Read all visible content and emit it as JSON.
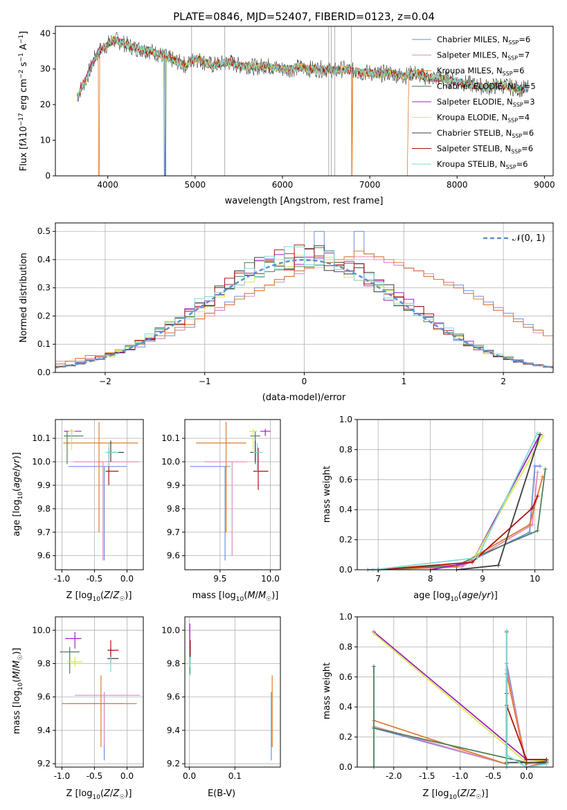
{
  "title": "PLATE=0846, MJD=52407, FIBERID=0123, z=0.04",
  "colors": {
    "Chabrier MILES": "#6b8fe0",
    "Salpeter MILES": "#e68ab8",
    "Kroupa MILES": "#e07b2a",
    "Chabrier ELODIE": "#4f7f5a",
    "Salpeter ELODIE": "#a020c0",
    "Kroupa ELODIE": "#d8e84a",
    "Chabrier STELIB": "#3c3c3c",
    "Salpeter STELIB": "#b01010",
    "Kroupa STELIB": "#7fd8d8",
    "normal": "#5b8ed6"
  },
  "chart_data": [
    {
      "id": "spectrum",
      "type": "line",
      "xlabel": "wavelength [Angstrom, rest frame]",
      "ylabel": "Flux [fλ10⁻¹⁷ erg cm⁻² s⁻¹ A⁻¹]",
      "xlim": [
        3400,
        9100
      ],
      "ylim": [
        0,
        42
      ],
      "xticks": [
        4000,
        5000,
        6000,
        7000,
        8000,
        9000
      ],
      "yticks": [
        0,
        10,
        20,
        30,
        40
      ],
      "legend_position": "top-right",
      "legend": [
        {
          "name": "Chabrier MILES",
          "nssp": "6"
        },
        {
          "name": "Salpeter MILES",
          "nssp": "7"
        },
        {
          "name": "Kroupa MILES",
          "nssp": "6"
        },
        {
          "name": "Chabrier ELODIE",
          "nssp": "5"
        },
        {
          "name": "Salpeter ELODIE",
          "nssp": "3"
        },
        {
          "name": "Kroupa ELODIE",
          "nssp": "4"
        },
        {
          "name": "Chabrier STELIB",
          "nssp": "6"
        },
        {
          "name": "Salpeter STELIB",
          "nssp": "6"
        },
        {
          "name": "Kroupa STELIB",
          "nssp": "6"
        }
      ],
      "series": [
        {
          "name": "data",
          "x": [
            3650,
            3700,
            3750,
            3800,
            3850,
            3900,
            3950,
            4000,
            4050,
            4100,
            4200,
            4300,
            4400,
            4500,
            4600,
            4700,
            4800,
            4900,
            5000,
            5100,
            5200,
            5300,
            5400,
            5500,
            5600,
            5700,
            5800,
            5900,
            6000,
            6100,
            6200,
            6300,
            6400,
            6500,
            6600,
            6700,
            6800,
            6900,
            7000,
            7100,
            7200,
            7300,
            7400,
            7500,
            7600,
            7700,
            7800,
            7900,
            8000,
            8100,
            8200,
            8300,
            8400,
            8500,
            8600,
            8700,
            8800
          ],
          "y": [
            22,
            25,
            27,
            30,
            33,
            35,
            36,
            37,
            38,
            38,
            37,
            36,
            35.5,
            35,
            34,
            33,
            32,
            31,
            33,
            32,
            31,
            31.5,
            32,
            31,
            31,
            30.5,
            31,
            30.5,
            30,
            30,
            30.5,
            30,
            30,
            30,
            29.5,
            30,
            29.5,
            29,
            29,
            28.5,
            29,
            28.5,
            28,
            29,
            28,
            27.5,
            27.5,
            27,
            26.5,
            26,
            25.5,
            25,
            25,
            25.5,
            25,
            24.5,
            24.5
          ]
        }
      ]
    },
    {
      "id": "residuals",
      "type": "histogram",
      "xlabel": "(data-model)/error",
      "ylabel": "Normed distribution",
      "xlim": [
        -2.5,
        2.5
      ],
      "ylim": [
        0,
        0.53
      ],
      "xticks": [
        -2,
        -1,
        0,
        1,
        2
      ],
      "yticks": [
        0.0,
        0.1,
        0.2,
        0.3,
        0.4,
        0.5
      ],
      "legend_position": "top-right",
      "normal_label": "𝒩(0, 1)",
      "bin_width": 0.1,
      "bin_start": -2.5,
      "histograms": [
        {
          "name": "Chabrier MILES",
          "values": [
            0.03,
            0.04,
            0.04,
            0.05,
            0.06,
            0.06,
            0.07,
            0.08,
            0.09,
            0.11,
            0.12,
            0.13,
            0.15,
            0.16,
            0.19,
            0.21,
            0.22,
            0.25,
            0.27,
            0.28,
            0.3,
            0.31,
            0.33,
            0.34,
            0.36,
            0.37,
            0.38,
            0.39,
            0.4,
            0.41,
            0.5,
            0.42,
            0.41,
            0.39,
            0.38,
            0.37,
            0.36,
            0.34,
            0.33,
            0.32,
            0.31,
            0.29,
            0.27,
            0.25,
            0.23,
            0.21,
            0.19,
            0.17,
            0.15,
            0.13
          ]
        },
        {
          "name": "Salpeter MILES",
          "values": [
            0.04,
            0.04,
            0.05,
            0.05,
            0.06,
            0.07,
            0.08,
            0.09,
            0.1,
            0.11,
            0.12,
            0.14,
            0.15,
            0.17,
            0.19,
            0.2,
            0.22,
            0.24,
            0.26,
            0.27,
            0.29,
            0.31,
            0.32,
            0.34,
            0.35,
            0.37,
            0.38,
            0.39,
            0.4,
            0.4,
            0.41,
            0.41,
            0.4,
            0.39,
            0.38,
            0.37,
            0.36,
            0.35,
            0.33,
            0.32,
            0.3,
            0.28,
            0.26,
            0.24,
            0.22,
            0.2,
            0.18,
            0.16,
            0.14,
            0.13
          ]
        },
        {
          "name": "Kroupa MILES",
          "values": [
            0.03,
            0.04,
            0.05,
            0.06,
            0.06,
            0.07,
            0.08,
            0.09,
            0.1,
            0.12,
            0.13,
            0.14,
            0.16,
            0.17,
            0.19,
            0.21,
            0.23,
            0.24,
            0.26,
            0.28,
            0.29,
            0.31,
            0.33,
            0.34,
            0.36,
            0.37,
            0.38,
            0.39,
            0.4,
            0.41,
            0.43,
            0.42,
            0.41,
            0.4,
            0.39,
            0.37,
            0.36,
            0.34,
            0.33,
            0.31,
            0.3,
            0.28,
            0.26,
            0.24,
            0.22,
            0.2,
            0.18,
            0.16,
            0.15,
            0.13
          ]
        }
      ]
    },
    {
      "id": "z_age",
      "type": "scatter",
      "xlabel": "Z [log₁₀(Z/Z☉)]",
      "ylabel": "age  [log₁₀(age/yr)]",
      "xlim": [
        -1.1,
        0.25
      ],
      "ylim": [
        9.54,
        10.18
      ],
      "xticks": [
        -1.0,
        -0.5,
        0.0
      ],
      "yticks": [
        9.6,
        9.7,
        9.8,
        9.9,
        10.0,
        10.1
      ]
    },
    {
      "id": "mass_age",
      "type": "scatter",
      "xlabel": "mass [log₁₀(M/M☉)]",
      "xlim": [
        9.15,
        10.1
      ],
      "ylim": [
        9.54,
        10.18
      ],
      "xticks": [
        9.5,
        10.0
      ],
      "yticks": [
        9.6,
        9.7,
        9.8,
        9.9,
        10.0,
        10.1
      ]
    },
    {
      "id": "age_weight",
      "type": "line",
      "xlabel": "age  [log₁₀(age/yr)]",
      "ylabel": "mass weight",
      "xlim": [
        6.6,
        10.35
      ],
      "ylim": [
        0,
        1.0
      ],
      "xticks": [
        7,
        8,
        9,
        10
      ],
      "yticks": [
        0.0,
        0.2,
        0.4,
        0.6,
        0.8,
        1.0
      ]
    },
    {
      "id": "z_mass",
      "type": "scatter",
      "xlabel": "Z [log₁₀(Z/Z☉)]",
      "ylabel": "mass [log₁₀(M/M☉)]",
      "xlim": [
        -1.1,
        0.25
      ],
      "ylim": [
        9.18,
        10.08
      ],
      "xticks": [
        -1.0,
        -0.5,
        0.0
      ],
      "yticks": [
        9.2,
        9.4,
        9.6,
        9.8,
        10.0
      ]
    },
    {
      "id": "ebv_mass",
      "type": "scatter",
      "xlabel": "E(B-V)",
      "xlim": [
        -0.01,
        0.2
      ],
      "ylim": [
        9.18,
        10.08
      ],
      "xticks": [
        0.0,
        0.1
      ],
      "yticks": [
        9.2,
        9.4,
        9.6,
        9.8,
        10.0
      ]
    },
    {
      "id": "z_weight",
      "type": "line",
      "xlabel": "Z [log₁₀(Z/Z☉)]",
      "ylabel": "mass weight",
      "xlim": [
        -2.55,
        0.4
      ],
      "ylim": [
        0,
        1.0
      ],
      "xticks": [
        -2.0,
        -1.5,
        -1.0,
        -0.5,
        0.0
      ],
      "yticks": [
        0.0,
        0.2,
        0.4,
        0.6,
        0.8,
        1.0
      ]
    }
  ]
}
